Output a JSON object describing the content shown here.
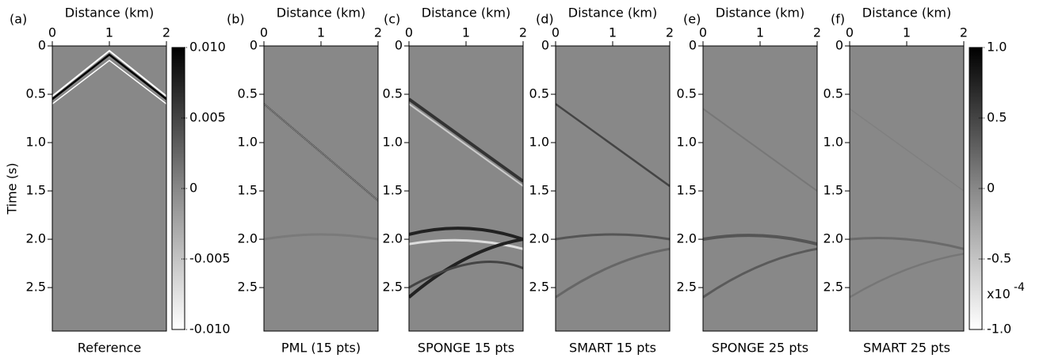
{
  "chart_data": [
    {
      "type": "image",
      "panel_label": "(a)",
      "x_label": "Distance (km)",
      "y_label": "Time (s)",
      "caption": "Reference",
      "xlim": [
        0,
        2
      ],
      "xticks": [
        0,
        1,
        2
      ],
      "ylim": [
        0,
        2.95
      ],
      "yticks": [
        0,
        0.5,
        {
          "value": 1,
          "label": "1.0"
        },
        1.5,
        {
          "value": 2,
          "label": "2.0"
        },
        2.5
      ],
      "colorbar": {
        "lim": [
          -0.01,
          0.01
        ],
        "ticks": [
          {
            "value": 0.01,
            "label": "0.010"
          },
          {
            "value": 0.005,
            "label": "0.005"
          },
          0,
          {
            "value": -0.005,
            "label": "-0.005"
          },
          {
            "value": -0.01,
            "label": "-0.010"
          }
        ]
      }
    },
    {
      "type": "image",
      "panel_label": "(b)",
      "x_label": "Distance (km)",
      "caption": "PML (15 pts)",
      "xlim": [
        0,
        2
      ],
      "xticks": [
        0,
        1,
        2
      ],
      "ylim": [
        0,
        2.95
      ],
      "yticks": [
        0,
        0.5,
        {
          "value": 1,
          "label": "1.0"
        },
        1.5,
        {
          "value": 2,
          "label": "2.0"
        },
        2.5
      ]
    },
    {
      "type": "image",
      "panel_label": "(c)",
      "x_label": "Distance (km)",
      "caption": "SPONGE 15 pts",
      "xlim": [
        0,
        2
      ],
      "xticks": [
        0,
        1,
        2
      ],
      "ylim": [
        0,
        2.95
      ],
      "yticks": [
        0,
        0.5,
        {
          "value": 1,
          "label": "1.0"
        },
        1.5,
        {
          "value": 2,
          "label": "2.0"
        },
        2.5
      ]
    },
    {
      "type": "image",
      "panel_label": "(d)",
      "x_label": "Distance (km)",
      "caption": "SMART 15 pts",
      "xlim": [
        0,
        2
      ],
      "xticks": [
        0,
        1,
        2
      ],
      "ylim": [
        0,
        2.95
      ],
      "yticks": [
        0,
        0.5,
        {
          "value": 1,
          "label": "1.0"
        },
        1.5,
        {
          "value": 2,
          "label": "2.0"
        },
        2.5
      ]
    },
    {
      "type": "image",
      "panel_label": "(e)",
      "x_label": "Distance (km)",
      "caption": "SPONGE 25 pts",
      "xlim": [
        0,
        2
      ],
      "xticks": [
        0,
        1,
        2
      ],
      "ylim": [
        0,
        2.95
      ],
      "yticks": [
        0,
        0.5,
        {
          "value": 1,
          "label": "1.0"
        },
        1.5,
        {
          "value": 2,
          "label": "2.0"
        },
        2.5
      ]
    },
    {
      "type": "image",
      "panel_label": "(f)",
      "x_label": "Distance (km)",
      "caption": "SMART 25 pts",
      "xlim": [
        0,
        2
      ],
      "xticks": [
        0,
        1,
        2
      ],
      "ylim": [
        0,
        2.95
      ],
      "yticks": [
        0,
        0.5,
        {
          "value": 1,
          "label": "1.0"
        },
        1.5,
        {
          "value": 2,
          "label": "2.0"
        },
        2.5
      ],
      "colorbar": {
        "lim": [
          -1,
          1
        ],
        "ticks": [
          {
            "value": 1,
            "label": "1.0"
          },
          0.5,
          0,
          -0.5,
          {
            "value": -1,
            "label": "-1.0"
          }
        ],
        "multiplier": "x10",
        "exponent": "-4"
      }
    }
  ]
}
